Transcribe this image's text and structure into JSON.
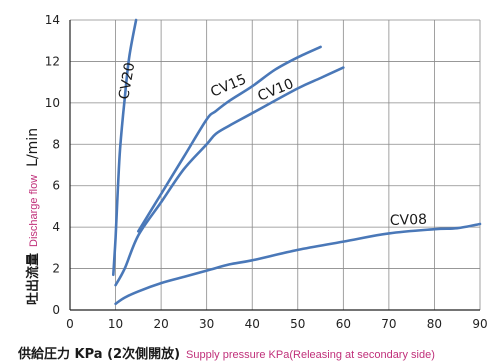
{
  "chart_data": {
    "type": "line",
    "xlim": [
      0,
      90
    ],
    "ylim": [
      0,
      14
    ],
    "x_ticks": [
      "0",
      "10",
      "20",
      "30",
      "40",
      "50",
      "60",
      "70",
      "80",
      "90"
    ],
    "y_ticks": [
      "0",
      "2",
      "4",
      "6",
      "8",
      "10",
      "12",
      "14"
    ],
    "grid": true,
    "xlabel_jp": "供給圧力 KPa (2次側開放)",
    "xlabel_en": "Supply pressure KPa(Releasing at secondary side)",
    "ylabel_jp": "吐出流量",
    "ylabel_en": "Discharge flow",
    "ylabel_unit": "L/min",
    "line_color": "#4a78b8",
    "series": [
      {
        "name": "CV08",
        "x": [
          10,
          12,
          15,
          20,
          25,
          30,
          35,
          40,
          50,
          60,
          70,
          80,
          85,
          90
        ],
        "y": [
          0.3,
          0.6,
          0.9,
          1.3,
          1.6,
          1.9,
          2.2,
          2.4,
          2.9,
          3.3,
          3.7,
          3.9,
          3.95,
          4.15
        ]
      },
      {
        "name": "CV10",
        "x": [
          10,
          12,
          15,
          20,
          25,
          30,
          32,
          35,
          40,
          50,
          55,
          60
        ],
        "y": [
          1.2,
          2.0,
          3.6,
          5.2,
          6.8,
          8.0,
          8.5,
          8.9,
          9.5,
          10.7,
          11.2,
          11.7
        ]
      },
      {
        "name": "CV15",
        "x": [
          15,
          20,
          25,
          30,
          32,
          35,
          40,
          45,
          50,
          55
        ],
        "y": [
          3.8,
          5.6,
          7.4,
          9.2,
          9.6,
          10.1,
          10.8,
          11.6,
          12.2,
          12.7
        ]
      },
      {
        "name": "CV20",
        "x": [
          9.5,
          10,
          10.5,
          11,
          12,
          13,
          14.5
        ],
        "y": [
          1.7,
          3.5,
          5.8,
          7.8,
          10.2,
          12.2,
          14
        ]
      }
    ],
    "series_labels": [
      "CV08",
      "CV10",
      "CV15",
      "CV20"
    ]
  }
}
